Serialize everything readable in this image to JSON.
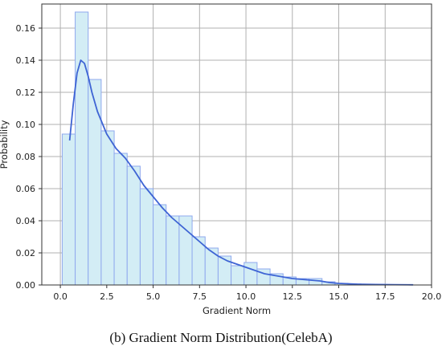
{
  "chart_data": {
    "type": "bar",
    "xlabel": "Gradient Norm",
    "ylabel": "Probability",
    "xlim": [
      -1,
      20
    ],
    "ylim": [
      0,
      0.175
    ],
    "xticks": [
      "0.0",
      "2.5",
      "5.0",
      "7.5",
      "10.0",
      "12.5",
      "15.0",
      "17.5",
      "20.0"
    ],
    "xtick_values": [
      0,
      2.5,
      5,
      7.5,
      10,
      12.5,
      15,
      17.5,
      20
    ],
    "yticks": [
      "0.00",
      "0.02",
      "0.04",
      "0.06",
      "0.08",
      "0.10",
      "0.12",
      "0.14",
      "0.16"
    ],
    "ytick_values": [
      0,
      0.02,
      0.04,
      0.06,
      0.08,
      0.1,
      0.12,
      0.14,
      0.16
    ],
    "grid": true,
    "bin_width": 0.7,
    "bins": {
      "left_edges": [
        0.1,
        0.8,
        1.5,
        2.2,
        2.9,
        3.6,
        4.3,
        5.0,
        5.7,
        6.4,
        7.1,
        7.8,
        8.5,
        9.2,
        9.9,
        10.6,
        11.3,
        12.0,
        12.7,
        13.4,
        14.1,
        14.8,
        15.5,
        16.2,
        16.9,
        17.6,
        18.3
      ],
      "values": [
        0.094,
        0.17,
        0.128,
        0.096,
        0.082,
        0.074,
        0.06,
        0.05,
        0.043,
        0.043,
        0.03,
        0.023,
        0.018,
        0.012,
        0.014,
        0.01,
        0.007,
        0.005,
        0.004,
        0.004,
        0.002,
        0.001,
        0.0007,
        0.0005,
        0.0003,
        0.0002,
        0.0002
      ]
    },
    "kde": {
      "x": [
        0.5,
        0.7,
        0.9,
        1.1,
        1.3,
        1.5,
        1.7,
        2.0,
        2.5,
        3.0,
        3.5,
        4.0,
        4.5,
        5.0,
        5.5,
        6.0,
        6.5,
        7.0,
        7.5,
        8.0,
        8.5,
        9.0,
        9.5,
        10.0,
        10.5,
        11.0,
        11.5,
        12.0,
        12.5,
        13.0,
        13.5,
        14.0,
        14.5,
        15.0,
        16.0,
        17.0,
        18.0,
        19.0
      ],
      "y": [
        0.09,
        0.113,
        0.132,
        0.14,
        0.138,
        0.13,
        0.12,
        0.108,
        0.094,
        0.085,
        0.079,
        0.071,
        0.062,
        0.055,
        0.048,
        0.042,
        0.037,
        0.032,
        0.027,
        0.022,
        0.018,
        0.015,
        0.013,
        0.011,
        0.009,
        0.007,
        0.006,
        0.005,
        0.004,
        0.0035,
        0.003,
        0.0025,
        0.0015,
        0.001,
        0.0005,
        0.0003,
        0.0002,
        0.0001
      ]
    },
    "colors": {
      "bar_fill": "#d3edf5",
      "bar_edge": "#8fa8ee",
      "kde_line": "#3e64d4",
      "grid": "#b0b0b0"
    }
  },
  "caption": "(b)  Gradient Norm Distribution(CelebA)"
}
